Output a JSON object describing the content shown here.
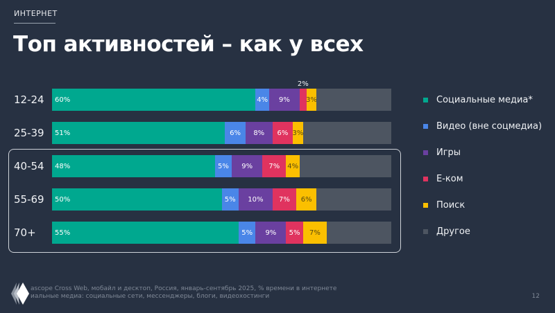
{
  "section": "ИНТЕРНЕТ",
  "title": "Топ активностей – как у всех",
  "colors": {
    "social": "#00a88f",
    "video": "#4a86e8",
    "games": "#6a40a0",
    "ecom": "#e0335f",
    "search": "#fbbf00",
    "other": "#4d5561",
    "background": "#273142"
  },
  "chart_data": {
    "type": "bar",
    "orientation": "horizontal-stacked-100",
    "categories": [
      "12-24",
      "25-39",
      "40-54",
      "55-69",
      "70+"
    ],
    "series": [
      {
        "name": "Социальные медиа*",
        "color": "#00a88f",
        "values": [
          60,
          51,
          48,
          50,
          55
        ],
        "labels": [
          "60%",
          "51%",
          "48%",
          "50%",
          "55%"
        ]
      },
      {
        "name": "Видео (вне соцмедиа)",
        "color": "#4a86e8",
        "values": [
          4,
          6,
          5,
          5,
          5
        ],
        "labels": [
          "4%",
          "6%",
          "5%",
          "5%",
          "5%"
        ]
      },
      {
        "name": "Игры",
        "color": "#6a40a0",
        "values": [
          9,
          8,
          9,
          10,
          9
        ],
        "labels": [
          "9%",
          "8%",
          "9%",
          "10%",
          "9%"
        ]
      },
      {
        "name": "Е-ком",
        "color": "#e0335f",
        "values": [
          2,
          6,
          7,
          7,
          5
        ],
        "labels": [
          "2%",
          "6%",
          "7%",
          "7%",
          "5%"
        ]
      },
      {
        "name": "Поиск",
        "color": "#fbbf00",
        "values": [
          3,
          3,
          4,
          6,
          7
        ],
        "labels": [
          "3%",
          "3%",
          "4%",
          "6%",
          "7%"
        ]
      },
      {
        "name": "Другое",
        "color": "#4d5561",
        "values": [
          22,
          26,
          27,
          22,
          19
        ],
        "labels": [
          "",
          "",
          "",
          "",
          ""
        ]
      }
    ],
    "xlim": [
      0,
      100
    ],
    "legend": "right",
    "highlighted_categories": [
      "40-54",
      "55-69",
      "70+"
    ]
  },
  "footnotes": [
    "ascope Cross Web, мобайл и десктоп, Россия, январь-сентябрь 2025, % времени в интернете",
    "иальные медиа: социальные сети, мессенджеры, блоги, видеохостинги"
  ],
  "page_number": "12"
}
